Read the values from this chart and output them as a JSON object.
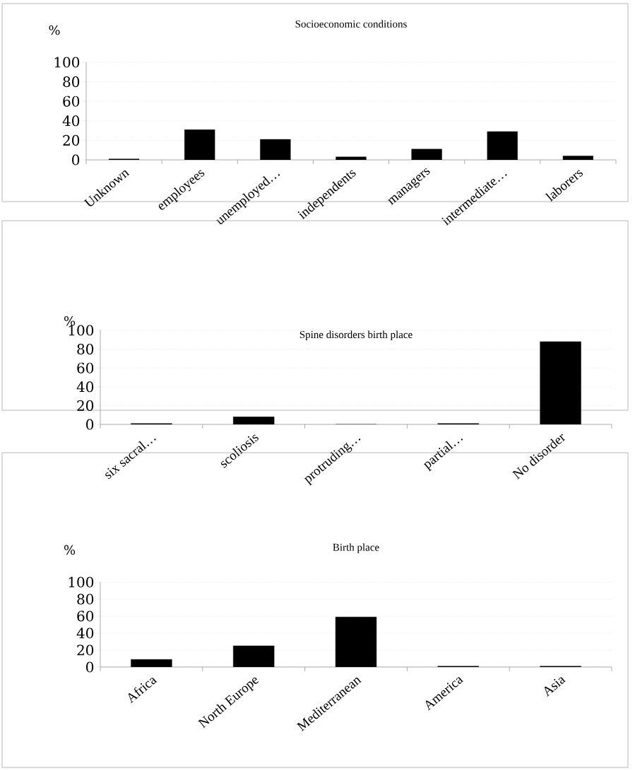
{
  "chart_data": [
    {
      "type": "bar",
      "title": "Socioeconomic conditions",
      "ylabel": "%",
      "categories": [
        "Unknown",
        "employees",
        "unemployed…",
        "independents",
        "managers",
        "intermediate…",
        "laborers"
      ],
      "values": [
        1,
        31,
        21,
        3,
        11,
        29,
        4
      ],
      "color": "#000000",
      "ylim": [
        0,
        100
      ],
      "yticks": [
        0,
        20,
        40,
        60,
        80,
        100
      ],
      "grid": "y"
    },
    {
      "type": "bar",
      "title": "Spine disorders birth place",
      "ylabel": "%",
      "categories": [
        "six sacral…",
        "scoliosis",
        "protruding…",
        "partial…",
        "No disorder"
      ],
      "values": [
        1,
        8,
        0,
        1,
        88
      ],
      "color": "#000000",
      "ylim": [
        0,
        100
      ],
      "yticks": [
        0,
        20,
        40,
        60,
        80,
        100
      ],
      "grid": "y"
    },
    {
      "type": "bar",
      "title": "Birth place",
      "ylabel": "%",
      "categories": [
        "Africa",
        "North Europe",
        "Mediterranean",
        "America",
        "Asia"
      ],
      "values": [
        9,
        25,
        59,
        1,
        1
      ],
      "color": "#000000",
      "ylim": [
        0,
        100
      ],
      "yticks": [
        0,
        20,
        40,
        60,
        80,
        100
      ],
      "grid": "y"
    }
  ]
}
